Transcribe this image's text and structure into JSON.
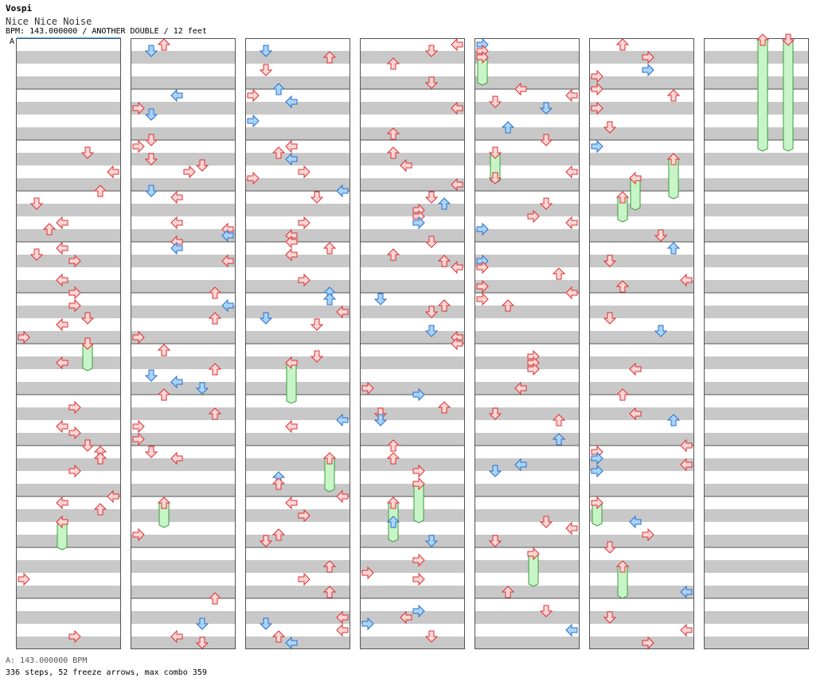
{
  "header": {
    "artist": "Vospi",
    "title": "Nice Nice Noise",
    "meta": "BPM: 143.000000 / ANOTHER DOUBLE / 12 feet"
  },
  "footer": {
    "bpm_line": "A: 143.000000 BPM",
    "stats_line": "336 steps, 52 freeze arrows, max combo 359"
  },
  "marker_label": "A",
  "colors": {
    "stripe": "#c8c8c8",
    "border": "#555555",
    "red_fill": "#ffd6d6",
    "red_stroke": "#d93030",
    "blue_fill": "#a8d4ff",
    "blue_stroke": "#2a6fc0",
    "freeze_fill": "#c8f5c8",
    "freeze_stroke": "#3c9a3c",
    "marker_line": "#4aa3ff"
  },
  "chart_data": {
    "type": "stepchart",
    "lanes": [
      "L1",
      "D1",
      "U1",
      "R1",
      "L2",
      "D2",
      "U2",
      "R2"
    ],
    "measures_per_column": 12,
    "columns": 7
  }
}
